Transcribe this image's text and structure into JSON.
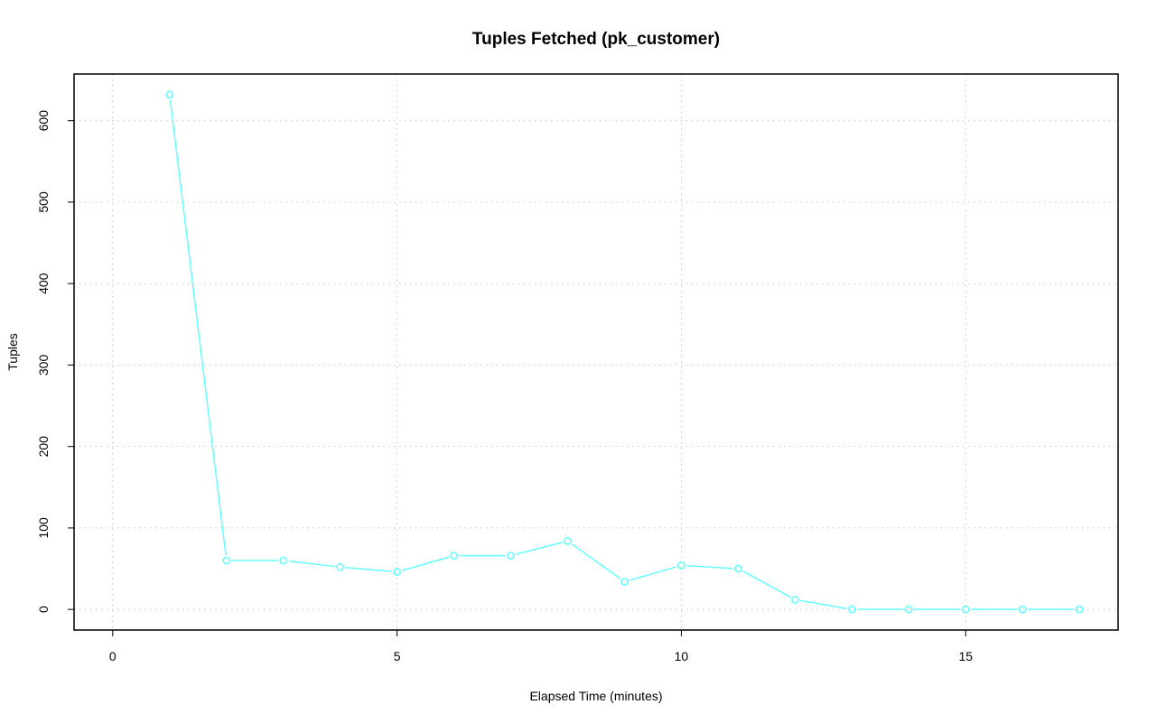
{
  "chart_data": {
    "type": "line",
    "title": "Tuples Fetched (pk_customer)",
    "xlabel": "Elapsed Time (minutes)",
    "ylabel": "Tuples",
    "x": [
      1,
      2,
      3,
      4,
      5,
      6,
      7,
      8,
      9,
      10,
      11,
      12,
      13,
      14,
      15,
      16,
      17
    ],
    "series": [
      {
        "name": "pk_customer",
        "values": [
          632,
          60,
          60,
          52,
          46,
          66,
          66,
          84,
          34,
          54,
          50,
          12,
          0,
          0,
          0,
          0,
          0
        ],
        "color": "#66FFFF"
      }
    ],
    "xlim": [
      -0.68,
      17.68
    ],
    "ylim": [
      -25.3,
      657.3
    ],
    "xticks": [
      0,
      5,
      10,
      15
    ],
    "yticks": [
      0,
      100,
      200,
      300,
      400,
      500,
      600
    ],
    "grid": true,
    "markers": "open-circle"
  }
}
